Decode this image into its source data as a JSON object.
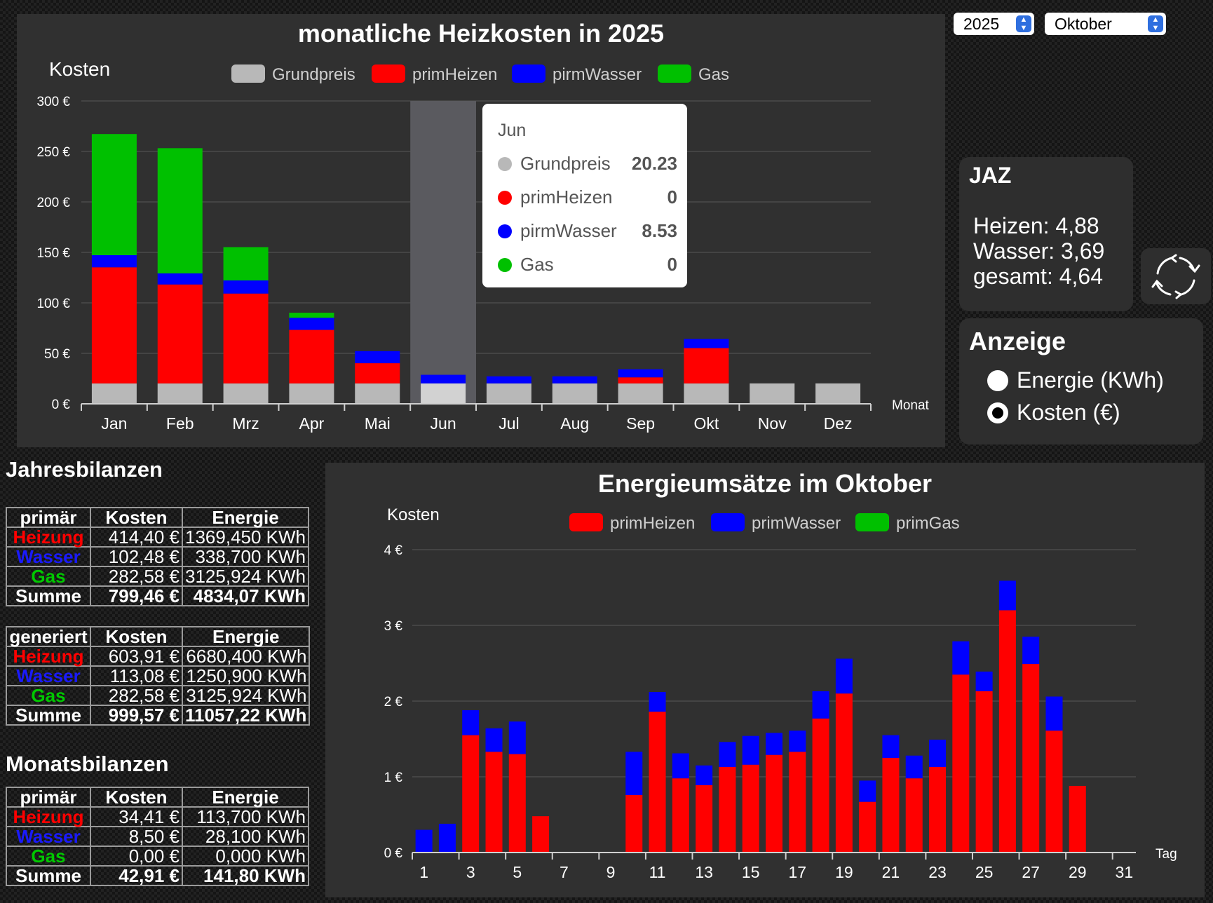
{
  "controls": {
    "year_value": "2025",
    "month_value": "Oktober"
  },
  "colors": {
    "grundpreis": "#b8b8b8",
    "heizen": "#ff0000",
    "wasser": "#0000ff",
    "gas": "#00c000"
  },
  "jaz": {
    "title": "JAZ",
    "heizen": "Heizen: 4,88",
    "wasser": "Wasser: 3,69",
    "gesamt": "gesamt: 4,64"
  },
  "anzeige": {
    "title": "Anzeige",
    "option_energie": "Energie (KWh)",
    "option_kosten": "Kosten (€)",
    "selected": "kosten"
  },
  "chart_data": [
    {
      "type": "bar",
      "stacked": true,
      "title": "monatliche Heizkosten in 2025",
      "ylabel": "Kosten",
      "xlabel": "Monat",
      "ylim": [
        0,
        300
      ],
      "yticks": [
        0,
        50,
        100,
        150,
        200,
        250,
        300
      ],
      "ytick_labels": [
        "0 €",
        "50 €",
        "100 €",
        "150 €",
        "200 €",
        "250 €",
        "300 €"
      ],
      "categories": [
        "Jan",
        "Feb",
        "Mrz",
        "Apr",
        "Mai",
        "Jun",
        "Jul",
        "Aug",
        "Sep",
        "Okt",
        "Nov",
        "Dez"
      ],
      "legend_position": "top",
      "series": [
        {
          "name": "Grundpreis",
          "color": "#b8b8b8",
          "values": [
            20.23,
            20.23,
            20.23,
            20.23,
            20.23,
            20.23,
            20.23,
            20.23,
            20.23,
            20.23,
            20.23,
            20.23
          ]
        },
        {
          "name": "primHeizen",
          "color": "#ff0000",
          "values": [
            115,
            98,
            89,
            53,
            20,
            0,
            0,
            0,
            6,
            35,
            0,
            0
          ]
        },
        {
          "name": "pirmWasser",
          "color": "#0000ff",
          "values": [
            12,
            11,
            13,
            12,
            12,
            8.53,
            7,
            7,
            8,
            9,
            0,
            0
          ]
        },
        {
          "name": "Gas",
          "color": "#00c000",
          "values": [
            120,
            124,
            33,
            5,
            0,
            0,
            0,
            0,
            0,
            0,
            0,
            0
          ]
        }
      ],
      "highlight_category": "Jun",
      "tooltip": {
        "title": "Jun",
        "rows": [
          {
            "name": "Grundpreis",
            "value": "20.23",
            "color": "#b8b8b8"
          },
          {
            "name": "primHeizen",
            "value": "0",
            "color": "#ff0000"
          },
          {
            "name": "pirmWasser",
            "value": "8.53",
            "color": "#0000ff"
          },
          {
            "name": "Gas",
            "value": "0",
            "color": "#00c000"
          }
        ]
      }
    },
    {
      "type": "bar",
      "stacked": true,
      "title": "Energieumsätze im Oktober",
      "ylabel": "Kosten",
      "xlabel": "Tag",
      "ylim": [
        0,
        4
      ],
      "yticks": [
        0,
        1,
        2,
        3,
        4
      ],
      "ytick_labels": [
        "0 €",
        "1 €",
        "2 €",
        "3 €",
        "4 €"
      ],
      "categories": [
        1,
        2,
        3,
        4,
        5,
        6,
        7,
        8,
        9,
        10,
        11,
        12,
        13,
        14,
        15,
        16,
        17,
        18,
        19,
        20,
        21,
        22,
        23,
        24,
        25,
        26,
        27,
        28,
        29,
        30,
        31
      ],
      "xtick_labels": [
        "1",
        "3",
        "5",
        "7",
        "9",
        "11",
        "13",
        "15",
        "17",
        "19",
        "21",
        "23",
        "25",
        "27",
        "29",
        "31"
      ],
      "legend_position": "top",
      "series": [
        {
          "name": "primHeizen",
          "color": "#ff0000",
          "values": [
            0,
            0,
            1.55,
            1.33,
            1.3,
            0.48,
            0,
            0,
            0,
            0.76,
            1.86,
            0.98,
            0.89,
            1.13,
            1.16,
            1.29,
            1.33,
            1.77,
            2.1,
            0.67,
            1.25,
            0.98,
            1.13,
            2.35,
            2.13,
            3.2,
            2.49,
            1.61,
            0.88,
            0,
            0
          ]
        },
        {
          "name": "primWasser",
          "color": "#0000ff",
          "values": [
            0.3,
            0.38,
            0.33,
            0.31,
            0.43,
            0,
            0,
            0,
            0,
            0.57,
            0.26,
            0.33,
            0.26,
            0.33,
            0.38,
            0.29,
            0.28,
            0.36,
            0.46,
            0.28,
            0.3,
            0.3,
            0.36,
            0.44,
            0.26,
            0.39,
            0.36,
            0.45,
            0,
            0,
            0
          ]
        },
        {
          "name": "primGas",
          "color": "#00c000",
          "values": [
            0,
            0,
            0,
            0,
            0,
            0,
            0,
            0,
            0,
            0,
            0,
            0,
            0,
            0,
            0,
            0,
            0,
            0,
            0,
            0,
            0,
            0,
            0,
            0,
            0,
            0,
            0,
            0,
            0,
            0,
            0
          ]
        }
      ]
    }
  ],
  "jahresbilanzen": {
    "title": "Jahresbilanzen",
    "primaer": {
      "header": [
        "primär",
        "Kosten",
        "Energie"
      ],
      "rows": [
        {
          "label": "Heizung",
          "kosten": "414,40 €",
          "energie": "1369,450 KWh"
        },
        {
          "label": "Wasser",
          "kosten": "102,48 €",
          "energie": "338,700 KWh"
        },
        {
          "label": "Gas",
          "kosten": "282,58 €",
          "energie": "3125,924 KWh"
        },
        {
          "label": "Summe",
          "kosten": "799,46 €",
          "energie": "4834,07 KWh"
        }
      ]
    },
    "generiert": {
      "header": [
        "generiert",
        "Kosten",
        "Energie"
      ],
      "rows": [
        {
          "label": "Heizung",
          "kosten": "603,91 €",
          "energie": "6680,400 KWh"
        },
        {
          "label": "Wasser",
          "kosten": "113,08 €",
          "energie": "1250,900 KWh"
        },
        {
          "label": "Gas",
          "kosten": "282,58 €",
          "energie": "3125,924 KWh"
        },
        {
          "label": "Summe",
          "kosten": "999,57 €",
          "energie": "11057,22 KWh"
        }
      ]
    }
  },
  "monatsbilanzen": {
    "title": "Monatsbilanzen",
    "primaer": {
      "header": [
        "primär",
        "Kosten",
        "Energie"
      ],
      "rows": [
        {
          "label": "Heizung",
          "kosten": "34,41 €",
          "energie": "113,700 KWh"
        },
        {
          "label": "Wasser",
          "kosten": "8,50 €",
          "energie": "28,100 KWh"
        },
        {
          "label": "Gas",
          "kosten": "0,00 €",
          "energie": "0,000 KWh"
        },
        {
          "label": "Summe",
          "kosten": "42,91 €",
          "energie": "141,80 KWh"
        }
      ]
    }
  }
}
